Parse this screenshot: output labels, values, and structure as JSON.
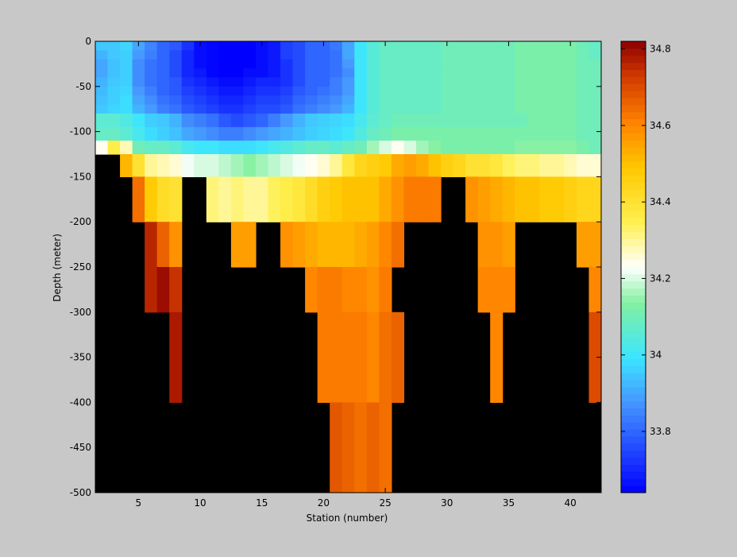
{
  "chart_data": {
    "type": "heatmap",
    "title": "",
    "xlabel": "Station (number)",
    "ylabel": "Depth (meter)",
    "xlim": [
      1.5,
      42.5
    ],
    "ylim": [
      -500,
      0
    ],
    "xticks": [
      5,
      10,
      15,
      20,
      25,
      30,
      35,
      40
    ],
    "yticks": [
      0,
      -50,
      -100,
      -150,
      -200,
      -250,
      -300,
      -350,
      -400,
      -450,
      -500
    ],
    "color_range": [
      33.64,
      34.82
    ],
    "colorbar_ticks": [
      33.8,
      34,
      34.2,
      34.4,
      34.6,
      34.8
    ],
    "colormap": "jet-white-center",
    "no_data_color": "#000000",
    "background_color": "#c8c8c8",
    "stations": [
      2,
      3,
      4,
      5,
      6,
      7,
      8,
      9,
      10,
      11,
      12,
      13,
      14,
      15,
      16,
      17,
      18,
      19,
      20,
      21,
      22,
      23,
      24,
      25,
      26,
      27,
      28,
      29,
      30,
      31,
      32,
      33,
      34,
      35,
      36,
      37,
      38,
      39,
      40,
      41,
      42
    ],
    "depth_bins": [
      [
        0,
        -10
      ],
      [
        -10,
        -20
      ],
      [
        -20,
        -30
      ],
      [
        -30,
        -40
      ],
      [
        -40,
        -50
      ],
      [
        -50,
        -60
      ],
      [
        -60,
        -70
      ],
      [
        -70,
        -80
      ],
      [
        -80,
        -95
      ],
      [
        -95,
        -110
      ],
      [
        -110,
        -125
      ],
      [
        -125,
        -150
      ],
      [
        -150,
        -200
      ],
      [
        -200,
        -250
      ],
      [
        -250,
        -300
      ],
      [
        -300,
        -400
      ],
      [
        -400,
        -500
      ]
    ],
    "salinity": [
      [
        33.95,
        33.95,
        33.97,
        33.9,
        33.85,
        33.8,
        33.78,
        33.72,
        33.66,
        33.65,
        33.64,
        33.64,
        33.64,
        33.66,
        33.68,
        33.74,
        33.76,
        33.8,
        33.8,
        33.83,
        33.9,
        34.0,
        34.05,
        34.08,
        34.08,
        34.08,
        34.08,
        34.08,
        34.1,
        34.1,
        34.1,
        34.1,
        34.1,
        34.1,
        34.12,
        34.12,
        34.12,
        34.12,
        34.12,
        34.1,
        34.08
      ],
      [
        33.92,
        33.95,
        33.96,
        33.88,
        33.84,
        33.8,
        33.76,
        33.7,
        33.66,
        33.65,
        33.64,
        33.64,
        33.64,
        33.66,
        33.68,
        33.74,
        33.76,
        33.8,
        33.8,
        33.82,
        33.9,
        34.0,
        34.05,
        34.08,
        34.08,
        34.08,
        34.08,
        34.08,
        34.1,
        34.1,
        34.1,
        34.1,
        34.1,
        34.1,
        34.12,
        34.12,
        34.12,
        34.12,
        34.12,
        34.1,
        34.08
      ],
      [
        33.9,
        33.94,
        33.96,
        33.86,
        33.82,
        33.8,
        33.76,
        33.7,
        33.66,
        33.65,
        33.64,
        33.64,
        33.64,
        33.66,
        33.68,
        33.72,
        33.76,
        33.8,
        33.8,
        33.82,
        33.88,
        34.0,
        34.05,
        34.08,
        34.08,
        34.08,
        34.08,
        34.08,
        34.1,
        34.1,
        34.1,
        34.1,
        34.1,
        34.1,
        34.12,
        34.12,
        34.12,
        34.12,
        34.12,
        34.1,
        34.1
      ],
      [
        33.9,
        33.94,
        33.96,
        33.86,
        33.82,
        33.8,
        33.76,
        33.7,
        33.68,
        33.65,
        33.64,
        33.64,
        33.66,
        33.66,
        33.68,
        33.72,
        33.76,
        33.8,
        33.8,
        33.82,
        33.86,
        34.0,
        34.05,
        34.08,
        34.08,
        34.08,
        34.08,
        34.08,
        34.1,
        34.1,
        34.1,
        34.1,
        34.1,
        34.1,
        34.12,
        34.12,
        34.12,
        34.12,
        34.12,
        34.1,
        34.1
      ],
      [
        33.92,
        33.95,
        33.96,
        33.86,
        33.82,
        33.8,
        33.78,
        33.72,
        33.7,
        33.68,
        33.66,
        33.66,
        33.68,
        33.7,
        33.7,
        33.72,
        33.76,
        33.8,
        33.8,
        33.84,
        33.88,
        34.0,
        34.05,
        34.08,
        34.08,
        34.08,
        34.08,
        34.08,
        34.1,
        34.1,
        34.1,
        34.1,
        34.1,
        34.1,
        34.12,
        34.12,
        34.12,
        34.12,
        34.12,
        34.1,
        34.1
      ],
      [
        33.93,
        33.96,
        33.97,
        33.88,
        33.84,
        33.8,
        33.78,
        33.74,
        33.72,
        33.7,
        33.68,
        33.68,
        33.7,
        33.72,
        33.72,
        33.74,
        33.78,
        33.8,
        33.82,
        33.84,
        33.88,
        34.0,
        34.05,
        34.08,
        34.08,
        34.08,
        34.08,
        34.08,
        34.1,
        34.1,
        34.1,
        34.1,
        34.1,
        34.1,
        34.12,
        34.12,
        34.12,
        34.12,
        34.12,
        34.1,
        34.1
      ],
      [
        33.94,
        33.96,
        33.98,
        33.9,
        33.86,
        33.82,
        33.8,
        33.76,
        33.74,
        33.72,
        33.7,
        33.7,
        33.72,
        33.74,
        33.74,
        33.76,
        33.8,
        33.82,
        33.84,
        33.86,
        33.9,
        34.0,
        34.05,
        34.08,
        34.08,
        34.08,
        34.08,
        34.08,
        34.1,
        34.1,
        34.1,
        34.1,
        34.1,
        34.1,
        34.12,
        34.12,
        34.12,
        34.12,
        34.12,
        34.1,
        34.1
      ],
      [
        33.95,
        33.97,
        33.98,
        33.92,
        33.88,
        33.84,
        33.82,
        33.78,
        33.76,
        33.74,
        33.72,
        33.72,
        33.74,
        33.76,
        33.76,
        33.78,
        33.82,
        33.84,
        33.86,
        33.88,
        33.92,
        34.0,
        34.05,
        34.08,
        34.08,
        34.08,
        34.08,
        34.08,
        34.1,
        34.1,
        34.1,
        34.1,
        34.1,
        34.1,
        34.12,
        34.12,
        34.12,
        34.12,
        34.12,
        34.1,
        34.1
      ],
      [
        34.06,
        34.06,
        34.04,
        34.0,
        33.96,
        33.95,
        33.92,
        33.86,
        33.84,
        33.82,
        33.78,
        33.76,
        33.78,
        33.8,
        33.84,
        33.88,
        33.92,
        33.95,
        33.96,
        33.97,
        33.98,
        34.02,
        34.06,
        34.08,
        34.1,
        34.1,
        34.1,
        34.1,
        34.1,
        34.1,
        34.1,
        34.1,
        34.1,
        34.1,
        34.1,
        34.12,
        34.12,
        34.12,
        34.12,
        34.1,
        34.1
      ],
      [
        34.08,
        34.08,
        34.06,
        34.02,
        33.98,
        33.96,
        33.94,
        33.9,
        33.88,
        33.86,
        33.84,
        33.84,
        33.86,
        33.88,
        33.9,
        33.92,
        33.94,
        33.96,
        33.97,
        33.98,
        34.0,
        34.04,
        34.08,
        34.1,
        34.12,
        34.12,
        34.12,
        34.12,
        34.12,
        34.12,
        34.12,
        34.12,
        34.12,
        34.12,
        34.12,
        34.12,
        34.12,
        34.12,
        34.12,
        34.1,
        34.1
      ],
      [
        34.24,
        34.36,
        34.28,
        34.1,
        34.08,
        34.08,
        34.06,
        34.02,
        34.0,
        34.0,
        33.98,
        33.98,
        33.98,
        34.0,
        34.02,
        34.04,
        34.06,
        34.08,
        34.08,
        34.06,
        34.08,
        34.1,
        34.16,
        34.2,
        34.24,
        34.2,
        34.16,
        34.14,
        34.12,
        34.12,
        34.12,
        34.12,
        34.12,
        34.12,
        34.14,
        34.14,
        34.14,
        34.14,
        34.14,
        34.12,
        34.1
      ],
      [
        null,
        null,
        34.52,
        34.4,
        34.3,
        34.28,
        34.26,
        34.22,
        34.2,
        34.2,
        34.18,
        34.16,
        34.14,
        34.16,
        34.18,
        34.2,
        34.22,
        34.24,
        34.26,
        34.3,
        34.38,
        34.44,
        34.46,
        34.48,
        34.54,
        34.56,
        34.54,
        34.5,
        34.46,
        34.44,
        34.4,
        34.4,
        34.38,
        34.34,
        34.32,
        34.32,
        34.3,
        34.3,
        34.28,
        34.26,
        34.26
      ],
      [
        null,
        null,
        null,
        34.64,
        34.48,
        34.42,
        34.4,
        null,
        null,
        34.32,
        34.3,
        34.32,
        34.3,
        34.3,
        34.34,
        34.36,
        34.38,
        34.42,
        34.46,
        34.48,
        34.5,
        34.5,
        34.5,
        34.54,
        34.58,
        34.62,
        34.62,
        34.62,
        null,
        null,
        34.58,
        34.56,
        34.54,
        34.52,
        34.5,
        34.5,
        34.48,
        34.48,
        34.46,
        34.44,
        34.44
      ],
      [
        null,
        null,
        null,
        null,
        34.76,
        34.66,
        34.58,
        null,
        null,
        null,
        null,
        34.56,
        34.56,
        null,
        null,
        34.58,
        34.56,
        34.54,
        34.52,
        34.52,
        34.52,
        34.54,
        34.56,
        34.6,
        34.64,
        null,
        null,
        null,
        null,
        null,
        null,
        34.58,
        34.58,
        34.56,
        null,
        null,
        null,
        null,
        null,
        34.56,
        34.56
      ],
      [
        null,
        null,
        null,
        null,
        34.76,
        34.8,
        34.74,
        null,
        null,
        null,
        null,
        null,
        null,
        null,
        null,
        null,
        null,
        34.6,
        34.62,
        34.62,
        34.6,
        34.6,
        34.58,
        34.62,
        null,
        null,
        null,
        null,
        null,
        null,
        null,
        34.6,
        34.6,
        34.6,
        null,
        null,
        null,
        null,
        null,
        null,
        34.6
      ],
      [
        null,
        null,
        null,
        null,
        null,
        null,
        34.78,
        null,
        null,
        null,
        null,
        null,
        null,
        null,
        null,
        null,
        null,
        null,
        34.62,
        34.62,
        34.62,
        34.62,
        34.6,
        34.64,
        34.66,
        null,
        null,
        null,
        null,
        null,
        null,
        null,
        34.6,
        null,
        null,
        null,
        null,
        null,
        null,
        null,
        34.7
      ],
      [
        null,
        null,
        null,
        null,
        null,
        null,
        null,
        null,
        null,
        null,
        null,
        null,
        null,
        null,
        null,
        null,
        null,
        null,
        null,
        34.68,
        34.66,
        34.64,
        34.66,
        34.64,
        null,
        null,
        null,
        null,
        null,
        null,
        null,
        null,
        null,
        null,
        null,
        null,
        null,
        null,
        null,
        null,
        null
      ]
    ]
  }
}
